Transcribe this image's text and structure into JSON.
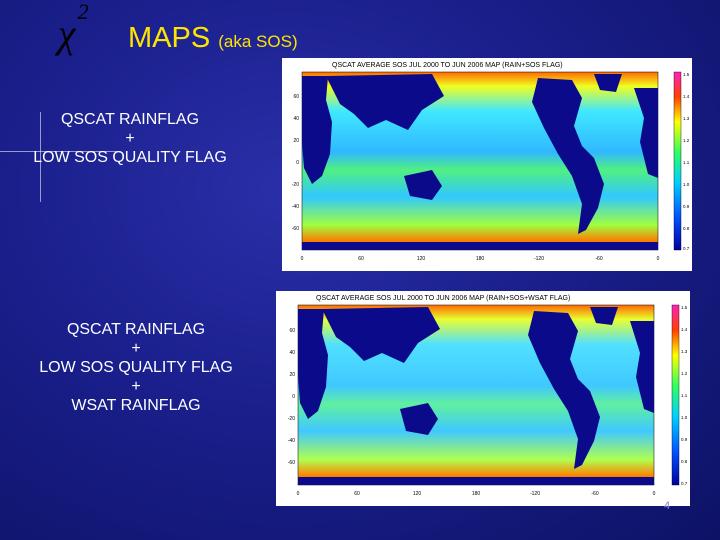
{
  "symbol": {
    "base": "χ",
    "exponent": "2"
  },
  "title": {
    "main": "MAPS",
    "sub": "(aka SOS)"
  },
  "block1": {
    "lines": [
      "QSCAT RAINFLAG",
      "+",
      "LOW SOS QUALITY FLAG"
    ]
  },
  "block2": {
    "lines": [
      "QSCAT RAINFLAG",
      "+",
      "LOW SOS QUALITY FLAG",
      "+",
      "WSAT RAINFLAG"
    ]
  },
  "map1": {
    "title": "QSCAT AVERAGE SOS JUL 2000 TO JUN 2006 MAP (RAIN+SOS FLAG)",
    "yticks": [
      "60",
      "40",
      "20",
      "0",
      "-20",
      "-40",
      "-60"
    ],
    "xticks": [
      "0",
      "60",
      "120",
      "180",
      "-120",
      "-60",
      "0"
    ],
    "cticks": [
      "1.5",
      "1.4",
      "1.3",
      "1.2",
      "1.1",
      "1.0",
      "0.9",
      "0.8",
      "0.7"
    ]
  },
  "map2": {
    "title": "QSCAT AVERAGE SOS JUL 2000 TO JUN 2006 MAP (RAIN+SOS+WSAT FLAG)",
    "yticks": [
      "60",
      "40",
      "20",
      "0",
      "-20",
      "-40",
      "-60"
    ],
    "xticks": [
      "0",
      "60",
      "120",
      "180",
      "-120",
      "-60",
      "0"
    ],
    "cticks": [
      "1.5",
      "1.4",
      "1.3",
      "1.2",
      "1.1",
      "1.0",
      "0.9",
      "0.8",
      "0.7"
    ]
  },
  "page_number": "4",
  "colors": {
    "title": "#ffe400",
    "background": "#1a1f8c",
    "land": "#0a0a8a"
  }
}
